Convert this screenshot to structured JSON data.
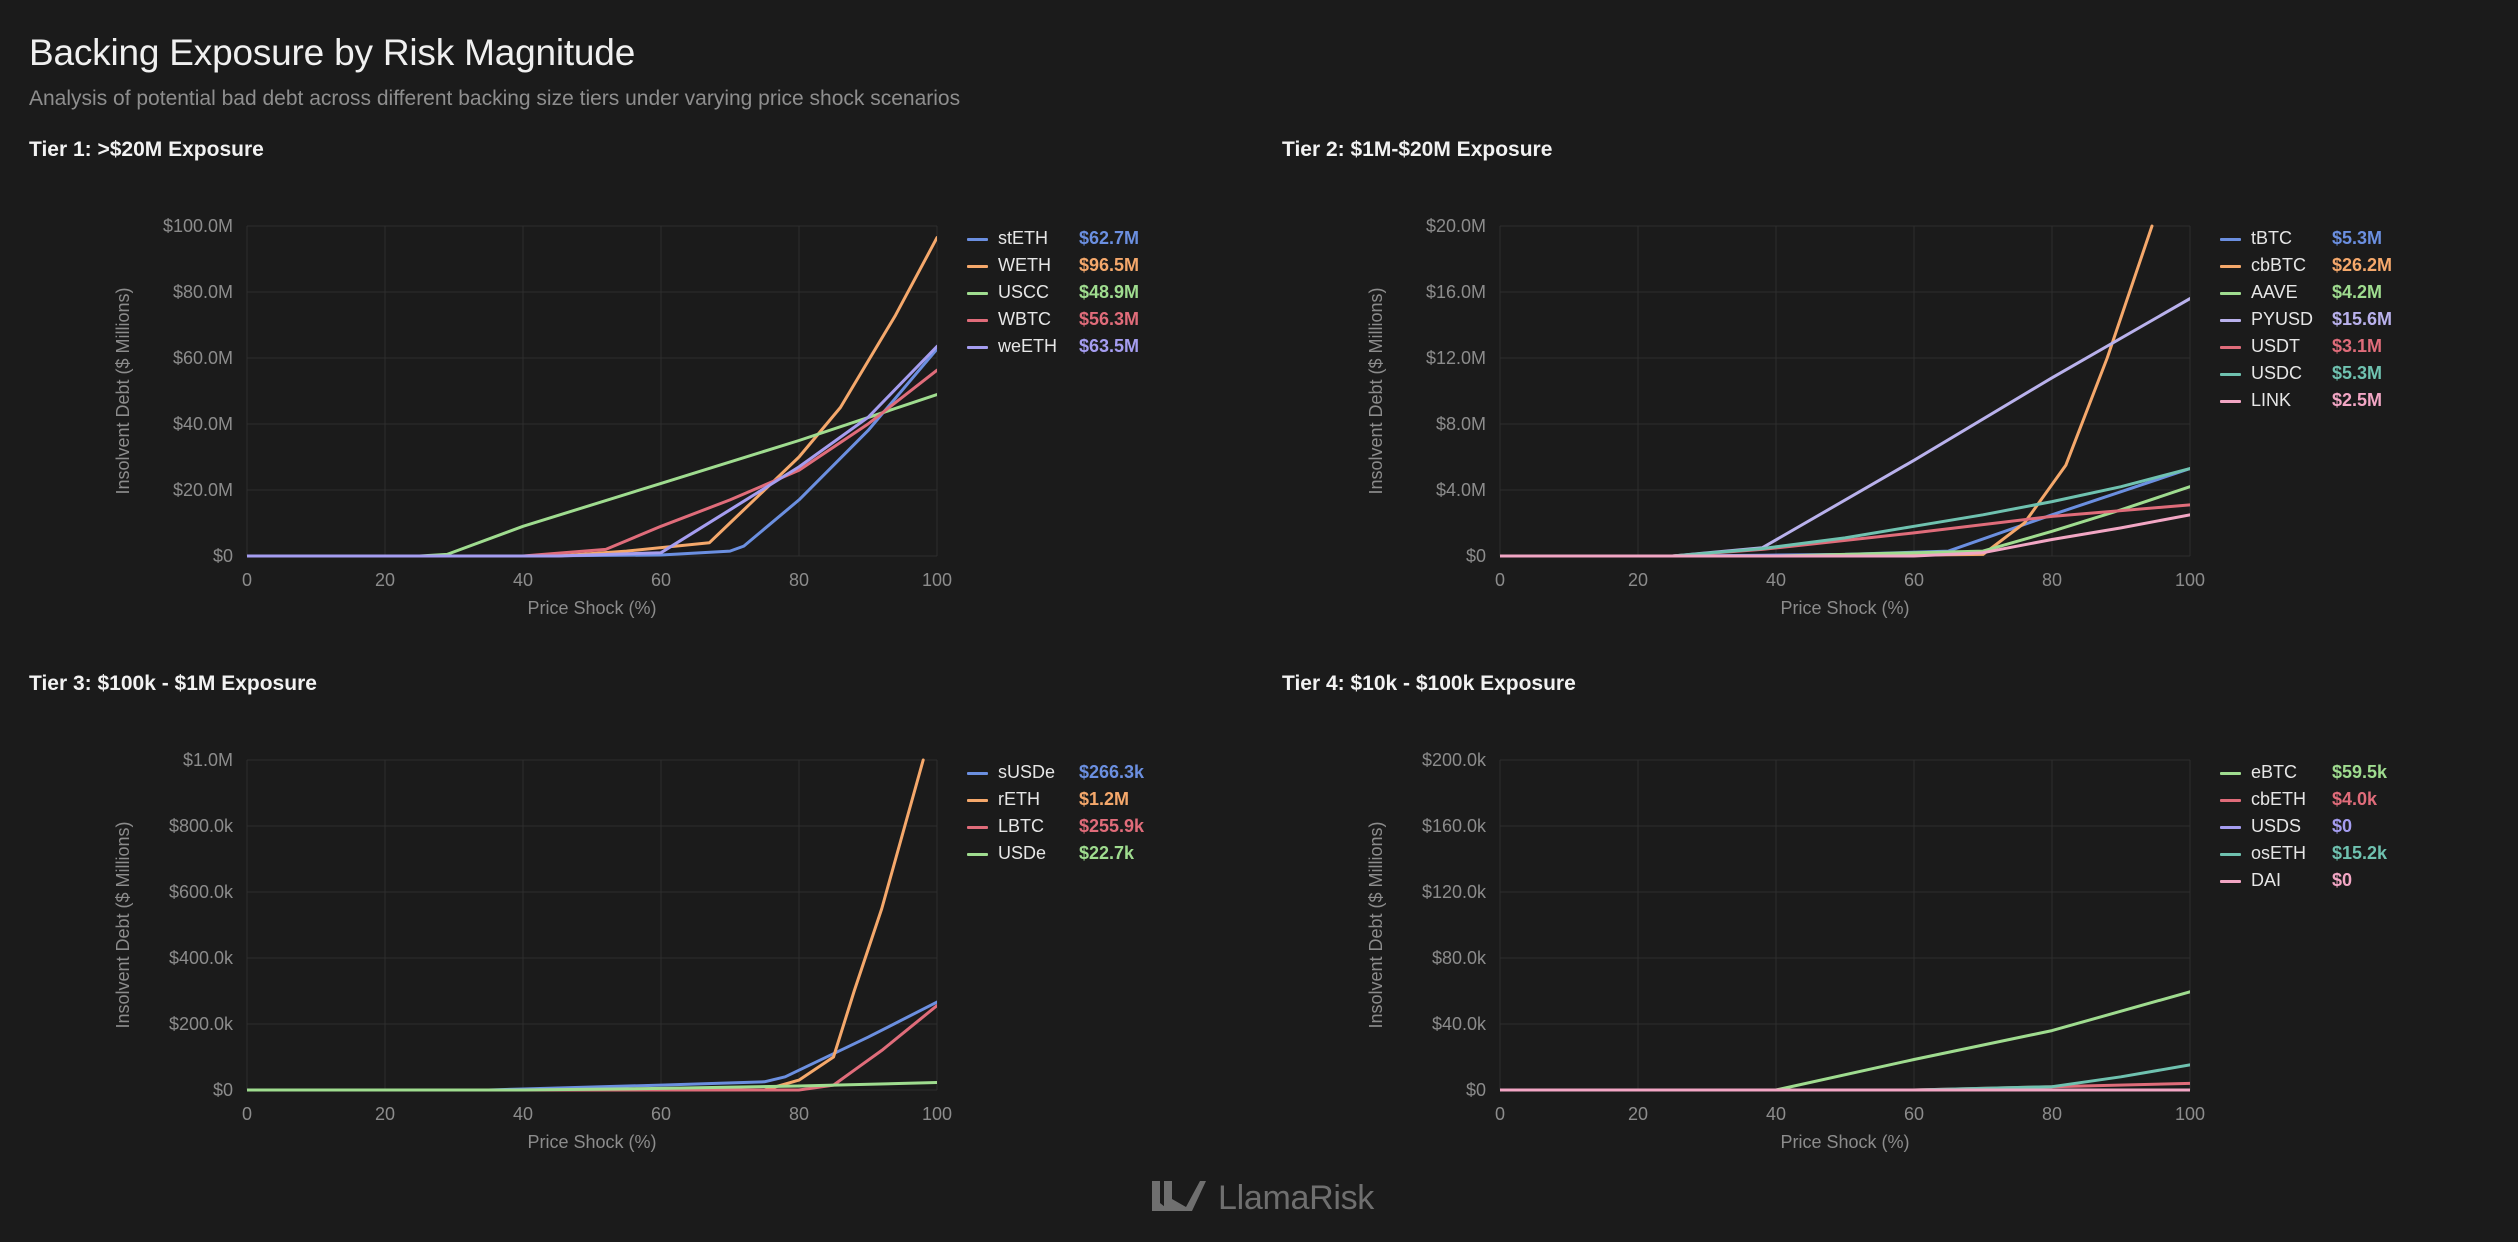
{
  "header": {
    "title": "Backing Exposure by Risk Magnitude",
    "subtitle": "Analysis of potential bad debt across different backing size tiers under varying price shock scenarios"
  },
  "footer": {
    "brand": "LlamaRisk",
    "logo_icon": "llama-logo-icon"
  },
  "chart_data": [
    {
      "type": "line",
      "title": "Tier 1: >$20M Exposure",
      "xlabel": "Price Shock (%)",
      "ylabel": "Insolvent Debt ($ Millions)",
      "xlim": [
        0,
        100
      ],
      "ylim": [
        0,
        100
      ],
      "x_ticks": [
        "0",
        "20",
        "40",
        "60",
        "80",
        "100"
      ],
      "y_ticks": [
        "$0",
        "$20.0M",
        "$40.0M",
        "$60.0M",
        "$80.0M",
        "$100.0M"
      ],
      "grid": true,
      "legend": "right",
      "series": [
        {
          "name": "stETH",
          "legend_value": "$62.7M",
          "color": "#6b8fe0",
          "points": [
            [
              0,
              0
            ],
            [
              40,
              0
            ],
            [
              60,
              0.3
            ],
            [
              70,
              1.5
            ],
            [
              72,
              3
            ],
            [
              80,
              17
            ],
            [
              90,
              38
            ],
            [
              100,
              62.7
            ]
          ]
        },
        {
          "name": "WETH",
          "legend_value": "$96.5M",
          "color": "#f5a86b",
          "points": [
            [
              0,
              0
            ],
            [
              45,
              0
            ],
            [
              55,
              1.5
            ],
            [
              67,
              4
            ],
            [
              70,
              10
            ],
            [
              80,
              30
            ],
            [
              86,
              45
            ],
            [
              94,
              73
            ],
            [
              100,
              96.5
            ]
          ]
        },
        {
          "name": "USCC",
          "legend_value": "$48.9M",
          "color": "#9fdc8f",
          "points": [
            [
              0,
              0
            ],
            [
              25,
              0
            ],
            [
              29,
              0.5
            ],
            [
              40,
              9
            ],
            [
              60,
              22
            ],
            [
              80,
              35
            ],
            [
              100,
              48.9
            ]
          ]
        },
        {
          "name": "WBTC",
          "legend_value": "$56.3M",
          "color": "#e06c7a",
          "points": [
            [
              0,
              0
            ],
            [
              40,
              0
            ],
            [
              52,
              2
            ],
            [
              60,
              9
            ],
            [
              70,
              17
            ],
            [
              80,
              26
            ],
            [
              90,
              40
            ],
            [
              100,
              56.3
            ]
          ]
        },
        {
          "name": "weETH",
          "legend_value": "$63.5M",
          "color": "#a59df0",
          "points": [
            [
              0,
              0
            ],
            [
              45,
              0
            ],
            [
              60,
              1
            ],
            [
              70,
              14
            ],
            [
              80,
              27
            ],
            [
              90,
              42
            ],
            [
              100,
              63.5
            ]
          ]
        }
      ]
    },
    {
      "type": "line",
      "title": "Tier 2: $1M-$20M Exposure",
      "xlabel": "Price Shock (%)",
      "ylabel": "Insolvent Debt ($ Millions)",
      "xlim": [
        0,
        100
      ],
      "ylim": [
        0,
        20
      ],
      "x_ticks": [
        "0",
        "20",
        "40",
        "60",
        "80",
        "100"
      ],
      "y_ticks": [
        "$0",
        "$4.0M",
        "$8.0M",
        "$12.0M",
        "$16.0M",
        "$20.0M"
      ],
      "grid": true,
      "legend": "right",
      "series": [
        {
          "name": "tBTC",
          "legend_value": "$5.3M",
          "color": "#6b8fe0",
          "points": [
            [
              0,
              0
            ],
            [
              25,
              0
            ],
            [
              38,
              0.05
            ],
            [
              50,
              0.1
            ],
            [
              65,
              0.3
            ],
            [
              80,
              2.5
            ],
            [
              100,
              5.3
            ]
          ]
        },
        {
          "name": "cbBTC",
          "legend_value": "$26.2M",
          "color": "#f5a86b",
          "points": [
            [
              0,
              0
            ],
            [
              50,
              0
            ],
            [
              70,
              0.1
            ],
            [
              76,
              2
            ],
            [
              82,
              5.5
            ],
            [
              88,
              12
            ],
            [
              94.5,
              20
            ]
          ]
        },
        {
          "name": "AAVE",
          "legend_value": "$4.2M",
          "color": "#9fdc8f",
          "points": [
            [
              0,
              0
            ],
            [
              40,
              0
            ],
            [
              70,
              0.3
            ],
            [
              80,
              1.5
            ],
            [
              90,
              2.8
            ],
            [
              100,
              4.2
            ]
          ]
        },
        {
          "name": "PYUSD",
          "legend_value": "$15.6M",
          "color": "#b9b1ec",
          "points": [
            [
              0,
              0
            ],
            [
              25,
              0
            ],
            [
              38,
              0.5
            ],
            [
              60,
              5.8
            ],
            [
              80,
              10.8
            ],
            [
              100,
              15.6
            ]
          ]
        },
        {
          "name": "USDT",
          "legend_value": "$3.1M",
          "color": "#e06c7a",
          "points": [
            [
              0,
              0
            ],
            [
              25,
              0
            ],
            [
              38,
              0.4
            ],
            [
              60,
              1.4
            ],
            [
              80,
              2.4
            ],
            [
              100,
              3.1
            ]
          ]
        },
        {
          "name": "USDC",
          "legend_value": "$5.3M",
          "color": "#6fc2b0",
          "points": [
            [
              0,
              0
            ],
            [
              25,
              0
            ],
            [
              38,
              0.45
            ],
            [
              50,
              1.1
            ],
            [
              60,
              1.8
            ],
            [
              70,
              2.5
            ],
            [
              80,
              3.3
            ],
            [
              90,
              4.2
            ],
            [
              100,
              5.3
            ]
          ]
        },
        {
          "name": "LINK",
          "legend_value": "$2.5M",
          "color": "#f2a6c4",
          "points": [
            [
              0,
              0
            ],
            [
              60,
              0
            ],
            [
              70,
              0.2
            ],
            [
              80,
              1.0
            ],
            [
              90,
              1.7
            ],
            [
              100,
              2.5
            ]
          ]
        }
      ]
    },
    {
      "type": "line",
      "title": "Tier 3: $100k - $1M Exposure",
      "xlabel": "Price Shock (%)",
      "ylabel": "Insolvent Debt ($ Millions)",
      "xlim": [
        0,
        100
      ],
      "ylim": [
        0,
        1000
      ],
      "x_ticks": [
        "0",
        "20",
        "40",
        "60",
        "80",
        "100"
      ],
      "y_ticks": [
        "$0",
        "$200.0k",
        "$400.0k",
        "$600.0k",
        "$800.0k",
        "$1.0M"
      ],
      "grid": true,
      "legend": "right",
      "series": [
        {
          "name": "sUSDe",
          "legend_value": "$266.3k",
          "color": "#6b8fe0",
          "points": [
            [
              0,
              0
            ],
            [
              35,
              0
            ],
            [
              40,
              3
            ],
            [
              60,
              15
            ],
            [
              75,
              25
            ],
            [
              78,
              40
            ],
            [
              80,
              60
            ],
            [
              85,
              110
            ],
            [
              90,
              160
            ],
            [
              100,
              266.3
            ]
          ]
        },
        {
          "name": "rETH",
          "legend_value": "$1.2M",
          "color": "#f5a86b",
          "points": [
            [
              0,
              0
            ],
            [
              75,
              0
            ],
            [
              80,
              30
            ],
            [
              85,
              100
            ],
            [
              88,
              300
            ],
            [
              92,
              550
            ],
            [
              98,
              1000
            ]
          ]
        },
        {
          "name": "LBTC",
          "legend_value": "$255.9k",
          "color": "#e06c7a",
          "points": [
            [
              0,
              0
            ],
            [
              80,
              0
            ],
            [
              85,
              15
            ],
            [
              88,
              60
            ],
            [
              92,
              120
            ],
            [
              100,
              255.9
            ]
          ]
        },
        {
          "name": "USDe",
          "legend_value": "$22.7k",
          "color": "#9fdc8f",
          "points": [
            [
              0,
              0
            ],
            [
              40,
              0
            ],
            [
              60,
              5
            ],
            [
              80,
              12
            ],
            [
              100,
              22.7
            ]
          ]
        }
      ]
    },
    {
      "type": "line",
      "title": "Tier 4: $10k - $100k Exposure",
      "xlabel": "Price Shock (%)",
      "ylabel": "Insolvent Debt ($ Millions)",
      "xlim": [
        0,
        100
      ],
      "ylim": [
        0,
        200
      ],
      "x_ticks": [
        "0",
        "20",
        "40",
        "60",
        "80",
        "100"
      ],
      "y_ticks": [
        "$0",
        "$40.0k",
        "$80.0k",
        "$120.0k",
        "$160.0k",
        "$200.0k"
      ],
      "grid": true,
      "legend": "right",
      "series": [
        {
          "name": "eBTC",
          "legend_value": "$59.5k",
          "color": "#9fdc8f",
          "points": [
            [
              0,
              0
            ],
            [
              40,
              0
            ],
            [
              60,
              18.5
            ],
            [
              80,
              36
            ],
            [
              100,
              59.5
            ]
          ]
        },
        {
          "name": "cbETH",
          "legend_value": "$4.0k",
          "color": "#e06c7a",
          "points": [
            [
              0,
              0
            ],
            [
              60,
              0
            ],
            [
              80,
              2
            ],
            [
              100,
              4.0
            ]
          ]
        },
        {
          "name": "USDS",
          "legend_value": "$0",
          "color": "#a59df0",
          "points": [
            [
              0,
              0
            ],
            [
              100,
              0
            ]
          ]
        },
        {
          "name": "osETH",
          "legend_value": "$15.2k",
          "color": "#6fc2b0",
          "points": [
            [
              0,
              0
            ],
            [
              60,
              0
            ],
            [
              80,
              2
            ],
            [
              90,
              8
            ],
            [
              100,
              15.2
            ]
          ]
        },
        {
          "name": "DAI",
          "legend_value": "$0",
          "color": "#f2a6c4",
          "points": [
            [
              0,
              0
            ],
            [
              100,
              0
            ]
          ]
        }
      ]
    }
  ]
}
